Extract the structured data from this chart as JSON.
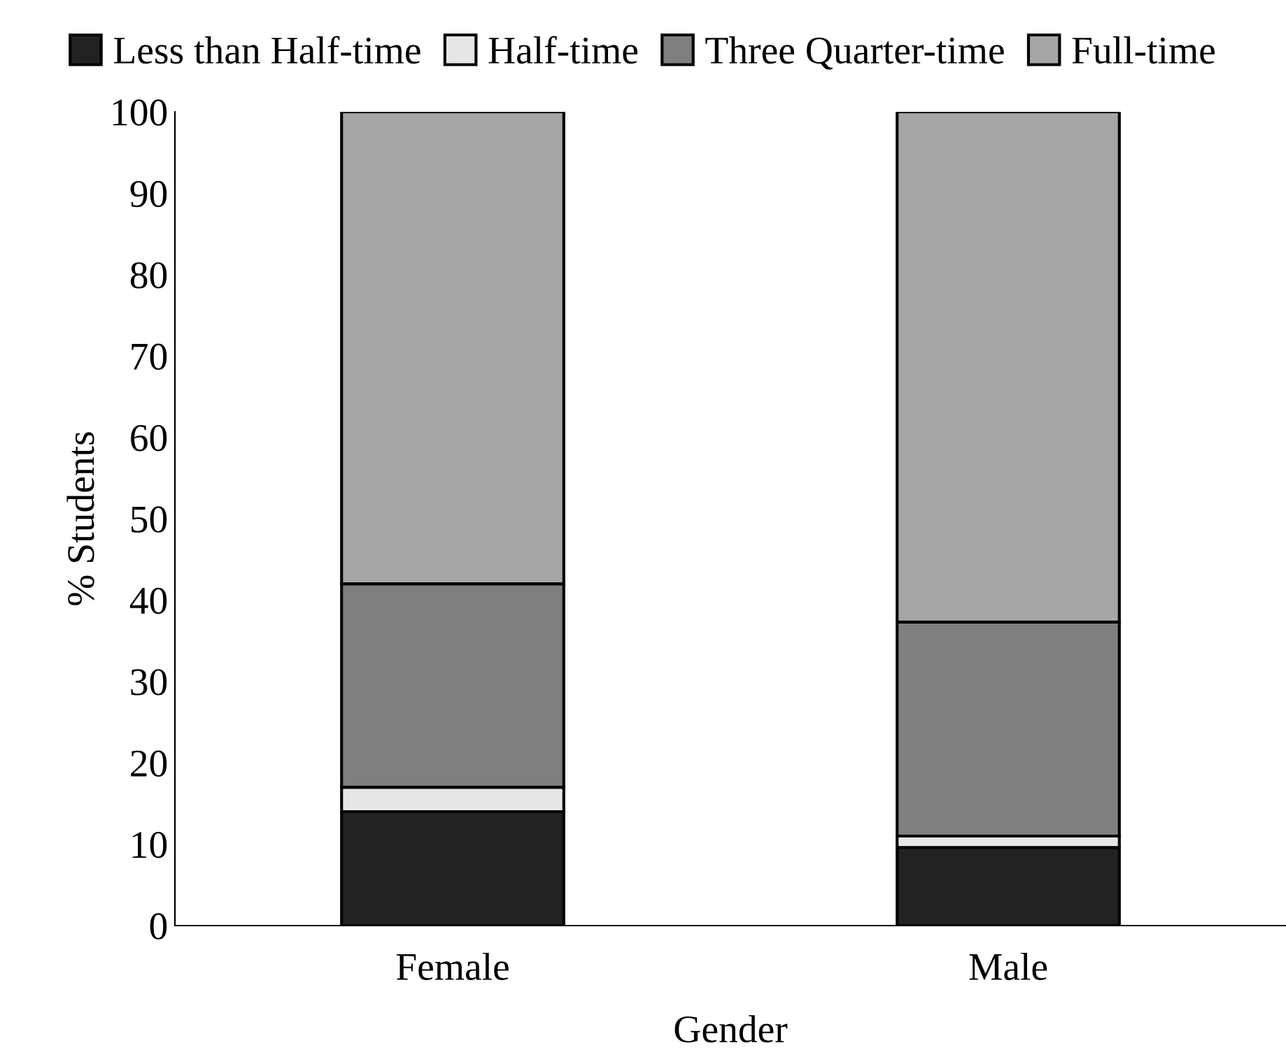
{
  "chart_data": {
    "type": "bar",
    "stacked": true,
    "xlabel": "Gender",
    "ylabel": "% Students",
    "categories": [
      "Female",
      "Male"
    ],
    "series": [
      {
        "name": "Less than Half-time",
        "color": "#222222",
        "values": [
          14,
          9.6
        ]
      },
      {
        "name": "Half-time",
        "color": "#e6e6e6",
        "values": [
          3,
          1.4
        ]
      },
      {
        "name": "Three Quarter-time",
        "color": "#7f7f7f",
        "values": [
          25,
          26.3
        ]
      },
      {
        "name": "Full-time",
        "color": "#a6a6a6",
        "values": [
          58,
          62.7
        ]
      }
    ],
    "ylim": [
      0,
      100
    ],
    "yticks": [
      0,
      10,
      20,
      30,
      40,
      50,
      60,
      70,
      80,
      90,
      100
    ],
    "grid": false,
    "legend": "top"
  }
}
